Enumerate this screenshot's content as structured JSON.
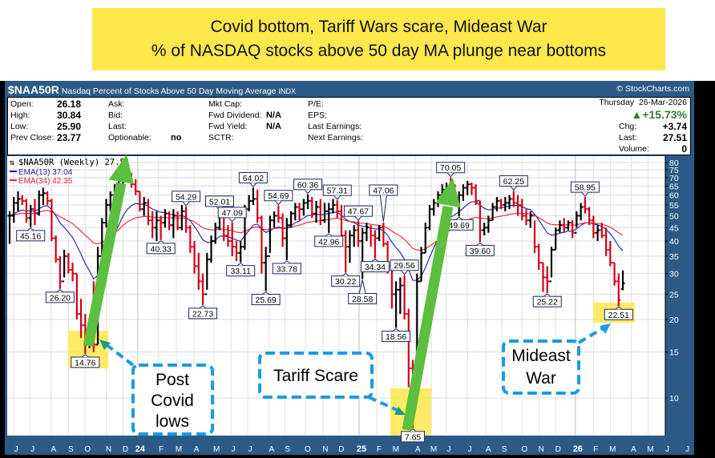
{
  "title_box": {
    "line1": "Covid bottom, Tariff Wars scare, Mideast War",
    "line2": "% of NASDAQ stocks above 50 day MA plunge near bottoms"
  },
  "header": {
    "symbol": "$NAA50R",
    "description": "Nasdaq Percent of Stocks Above 50 Day Moving Average",
    "exchange": "INDX",
    "copyright": "© StockCharts.com"
  },
  "info": {
    "open_label": "Open:",
    "open": "26.18",
    "high_label": "High:",
    "high": "30.84",
    "low_label": "Low:",
    "low": "25.90",
    "prev_close_label": "Prev Close:",
    "prev_close": "23.77",
    "ask_label": "Ask:",
    "bid_label": "Bid:",
    "last_label_mid": "Last:",
    "optionable_label": "Optionable:",
    "optionable": "no",
    "mkt_cap_label": "Mkt Cap:",
    "fwd_dividend_label": "Fwd Dividend:",
    "fwd_dividend": "N/A",
    "fwd_yield_label": "Fwd Yield:",
    "fwd_yield": "N/A",
    "sctr_label": "SCTR:",
    "pe_label": "P/E:",
    "eps_label": "EPS:",
    "last_earnings_label": "Last Earnings:",
    "next_earnings_label": "Next Earnings:",
    "date": "Thursday  26-Mar-2026",
    "pct_change": "+15.73%",
    "chg_label": "Chg:",
    "chg": "+3.74",
    "last_label": "Last:",
    "last": "27.51",
    "volume_label": "Volume:",
    "volume": "0"
  },
  "legend": {
    "price": "$NAA50R (Weekly) 27.51",
    "ema13": "EMA(13) 37.04",
    "ema34": "EMA(34) 42.35"
  },
  "colors": {
    "up": "#000000",
    "down": "#d0021b",
    "ema13": "#1a1a9c",
    "ema34": "#e0203a",
    "frame": "#2b5a86",
    "highlight": "#fde84c",
    "arrow_green": "#5cbf3f",
    "callout_blue": "#1a9be6",
    "pct_up": "#2e7d32"
  },
  "annotations": {
    "post_covid": [
      "Post",
      "Covid",
      "lows"
    ],
    "tariff": "Tariff Scare",
    "mideast": [
      "Mideast",
      "War"
    ]
  },
  "chart_data": {
    "type": "ohlc",
    "title": "$NAA50R Nasdaq Percent of Stocks Above 50 Day Moving Average (Weekly)",
    "yscale": "log",
    "ylim": [
      6.5,
      84
    ],
    "yticks": [
      "80",
      "75",
      "70",
      "65",
      "60",
      "55",
      "50",
      "45",
      "40",
      "35",
      "30",
      "25",
      "20",
      "15",
      "10"
    ],
    "bar_format": "[high, low, close] per week; open = prior close",
    "last_open": 26.18,
    "bars": [
      [
        52,
        39,
        50
      ],
      [
        59,
        47,
        56
      ],
      [
        62,
        52,
        58
      ],
      [
        60,
        55,
        57
      ],
      [
        58,
        47,
        49
      ],
      [
        55,
        45.16,
        53
      ],
      [
        58,
        46,
        51
      ],
      [
        62.5,
        50,
        60
      ],
      [
        64,
        55,
        61
      ],
      [
        62,
        55,
        57
      ],
      [
        58,
        40,
        41
      ],
      [
        42,
        33,
        34
      ],
      [
        35,
        26.2,
        28
      ],
      [
        37,
        29,
        35
      ],
      [
        36,
        30,
        31
      ],
      [
        33,
        28,
        30
      ],
      [
        30,
        20,
        21
      ],
      [
        24,
        17,
        19
      ],
      [
        21,
        14.76,
        16
      ],
      [
        19,
        15.5,
        18
      ],
      [
        28,
        15,
        16
      ],
      [
        38,
        16,
        35
      ],
      [
        49,
        34,
        47
      ],
      [
        58,
        45,
        55
      ],
      [
        62,
        52,
        60
      ],
      [
        66,
        58,
        64
      ],
      [
        71,
        62,
        68
      ],
      [
        76,
        66,
        73
      ],
      [
        75,
        67,
        70
      ],
      [
        73,
        64,
        66
      ],
      [
        69,
        60,
        62
      ],
      [
        62,
        52,
        53
      ],
      [
        59,
        50,
        56
      ],
      [
        58,
        46,
        48
      ],
      [
        52,
        41,
        45
      ],
      [
        52,
        40,
        48
      ],
      [
        50,
        40.33,
        47
      ],
      [
        53,
        45,
        51
      ],
      [
        52,
        44,
        46
      ],
      [
        53,
        41,
        50
      ],
      [
        52,
        44,
        45
      ],
      [
        55,
        44,
        52
      ],
      [
        54.29,
        43,
        45
      ],
      [
        46,
        36,
        38
      ],
      [
        40,
        30,
        32
      ],
      [
        36,
        26,
        28
      ],
      [
        30,
        22.73,
        25
      ],
      [
        36,
        26,
        34
      ],
      [
        42,
        33,
        40
      ],
      [
        47,
        39,
        45
      ],
      [
        52.01,
        44,
        50
      ],
      [
        50,
        40,
        42
      ],
      [
        46,
        38,
        40
      ],
      [
        47.09,
        35,
        38
      ],
      [
        40,
        33.5,
        36
      ],
      [
        40,
        33.11,
        38
      ],
      [
        55,
        37,
        53
      ],
      [
        60,
        52,
        57
      ],
      [
        64.02,
        55,
        58
      ],
      [
        63,
        47,
        49
      ],
      [
        50,
        30,
        33
      ],
      [
        38,
        25.69,
        35
      ],
      [
        50,
        36,
        48
      ],
      [
        52,
        45,
        50
      ],
      [
        54.69,
        47,
        49
      ],
      [
        51,
        38,
        41
      ],
      [
        49,
        33.78,
        46
      ],
      [
        52,
        45,
        51
      ],
      [
        56,
        48,
        54
      ],
      [
        56,
        48,
        53
      ],
      [
        58,
        50,
        56
      ],
      [
        60.36,
        53,
        57
      ],
      [
        59,
        49,
        51
      ],
      [
        57,
        47,
        54
      ],
      [
        58,
        46,
        48
      ],
      [
        56,
        47,
        52
      ],
      [
        56,
        42.96,
        53
      ],
      [
        58,
        51,
        55
      ],
      [
        57.31,
        49,
        52
      ],
      [
        55,
        40,
        42
      ],
      [
        44,
        30.22,
        38
      ],
      [
        44,
        33,
        42
      ],
      [
        46,
        38,
        44
      ],
      [
        47.67,
        38,
        40
      ],
      [
        45,
        28.58,
        43
      ],
      [
        47,
        40,
        45
      ],
      [
        46,
        38,
        42
      ],
      [
        44,
        34.34,
        41
      ],
      [
        46,
        40,
        45
      ],
      [
        47.06,
        38,
        39
      ],
      [
        40,
        30,
        32
      ],
      [
        33,
        22,
        25
      ],
      [
        28,
        18.56,
        26
      ],
      [
        29,
        21,
        27
      ],
      [
        29.56,
        20,
        21
      ],
      [
        22,
        11,
        13
      ],
      [
        14,
        7.65,
        12
      ],
      [
        30,
        15,
        28
      ],
      [
        38,
        28,
        36
      ],
      [
        47,
        36,
        45
      ],
      [
        55,
        44,
        53
      ],
      [
        58,
        50,
        56
      ],
      [
        62,
        54,
        60
      ],
      [
        66,
        58,
        63
      ],
      [
        67,
        59,
        65
      ],
      [
        70.05,
        60,
        63
      ],
      [
        66,
        55,
        57
      ],
      [
        62,
        49.69,
        60
      ],
      [
        66,
        57,
        64
      ],
      [
        68,
        60,
        66
      ],
      [
        67,
        60,
        64
      ],
      [
        66,
        55,
        57
      ],
      [
        57,
        39.6,
        44
      ],
      [
        47,
        42,
        45
      ],
      [
        50,
        43,
        48
      ],
      [
        56,
        48,
        54
      ],
      [
        59,
        52,
        57
      ],
      [
        58,
        53,
        55
      ],
      [
        59,
        52,
        56
      ],
      [
        60,
        53,
        58
      ],
      [
        62.25,
        54,
        56
      ],
      [
        60,
        50,
        55
      ],
      [
        58,
        48,
        50
      ],
      [
        53,
        46,
        48
      ],
      [
        52,
        45,
        50
      ],
      [
        48,
        36,
        38
      ],
      [
        39,
        31,
        33
      ],
      [
        33,
        25.5,
        29
      ],
      [
        32,
        25.22,
        28
      ],
      [
        38,
        29,
        37
      ],
      [
        45,
        37,
        44
      ],
      [
        48,
        43,
        46
      ],
      [
        49,
        43,
        45
      ],
      [
        48,
        44,
        47
      ],
      [
        48,
        41,
        43
      ],
      [
        52,
        45,
        50
      ],
      [
        56,
        48,
        54
      ],
      [
        58.95,
        51,
        53
      ],
      [
        54,
        46,
        48
      ],
      [
        50,
        41,
        43
      ],
      [
        46,
        40,
        44
      ],
      [
        47,
        41,
        42
      ],
      [
        45,
        35,
        37
      ],
      [
        40,
        32,
        33
      ],
      [
        33,
        27,
        28
      ],
      [
        30,
        22.51,
        23.77
      ],
      [
        30.84,
        25.9,
        27.51
      ]
    ],
    "labels": [
      {
        "week": 5,
        "text": "45.16",
        "side": "low"
      },
      {
        "week": 12,
        "text": "26.20",
        "side": "low"
      },
      {
        "week": 18,
        "text": "14.76",
        "side": "low"
      },
      {
        "week": 36,
        "text": "40.33",
        "side": "low"
      },
      {
        "week": 42,
        "text": "54.29",
        "side": "high"
      },
      {
        "week": 46,
        "text": "22.73",
        "side": "low"
      },
      {
        "week": 50,
        "text": "52.01",
        "side": "high"
      },
      {
        "week": 53,
        "text": "47.09",
        "side": "high"
      },
      {
        "week": 55,
        "text": "33.11",
        "side": "low"
      },
      {
        "week": 58,
        "text": "64.02",
        "side": "high"
      },
      {
        "week": 61,
        "text": "25.69",
        "side": "low"
      },
      {
        "week": 64,
        "text": "54.69",
        "side": "high"
      },
      {
        "week": 66,
        "text": "33.78",
        "side": "low"
      },
      {
        "week": 71,
        "text": "60.36",
        "side": "high"
      },
      {
        "week": 76,
        "text": "42.96",
        "side": "low"
      },
      {
        "week": 78,
        "text": "57.31",
        "side": "high"
      },
      {
        "week": 80,
        "text": "30.22",
        "side": "low"
      },
      {
        "week": 83,
        "text": "47.67",
        "side": "high"
      },
      {
        "week": 84,
        "text": "28.58",
        "side": "low"
      },
      {
        "week": 87,
        "text": "34.34",
        "side": "low"
      },
      {
        "week": 89,
        "text": "47.06",
        "side": "high"
      },
      {
        "week": 94,
        "text": "29.56",
        "side": "high"
      },
      {
        "week": 92,
        "text": "18.56",
        "side": "low"
      },
      {
        "week": 96,
        "text": "7.65",
        "side": "low"
      },
      {
        "week": 105,
        "text": "70.05",
        "side": "high"
      },
      {
        "week": 107,
        "text": "49.69",
        "side": "low"
      },
      {
        "week": 112,
        "text": "39.60",
        "side": "low"
      },
      {
        "week": 120,
        "text": "62.25",
        "side": "high"
      },
      {
        "week": 128,
        "text": "25.22",
        "side": "low"
      },
      {
        "week": 137,
        "text": "58.95",
        "side": "high"
      },
      {
        "week": 145,
        "text": "22.51",
        "side": "low"
      }
    ],
    "x_months": [
      {
        "week": 1,
        "label": "J"
      },
      {
        "week": 4.9,
        "label": "J"
      },
      {
        "week": 9.9,
        "label": "A"
      },
      {
        "week": 14,
        "label": "S"
      },
      {
        "week": 18,
        "label": "O"
      },
      {
        "week": 23,
        "label": "N"
      },
      {
        "week": 27,
        "label": "D"
      },
      {
        "week": 30.5,
        "label": "24"
      },
      {
        "week": 35.5,
        "label": "F"
      },
      {
        "week": 39.7,
        "label": "M"
      },
      {
        "week": 43.9,
        "label": "A"
      },
      {
        "week": 48.7,
        "label": "M"
      },
      {
        "week": 52.7,
        "label": "J"
      },
      {
        "week": 56.7,
        "label": "J"
      },
      {
        "week": 61.8,
        "label": "A"
      },
      {
        "week": 65.6,
        "label": "S"
      },
      {
        "week": 70.4,
        "label": "O"
      },
      {
        "week": 74.6,
        "label": "N"
      },
      {
        "week": 78.4,
        "label": "D"
      },
      {
        "week": 83.2,
        "label": "25"
      },
      {
        "week": 87.4,
        "label": "F"
      },
      {
        "week": 91.4,
        "label": "M"
      },
      {
        "week": 96.6,
        "label": "A"
      },
      {
        "week": 100.4,
        "label": "M"
      },
      {
        "week": 104,
        "label": "J"
      },
      {
        "week": 109,
        "label": "J"
      },
      {
        "week": 113.4,
        "label": "A"
      },
      {
        "week": 117.2,
        "label": "S"
      },
      {
        "week": 122,
        "label": "O"
      },
      {
        "week": 126,
        "label": "N"
      },
      {
        "week": 130,
        "label": "D"
      },
      {
        "week": 134.7,
        "label": "26"
      },
      {
        "week": 139,
        "label": "F"
      },
      {
        "week": 143,
        "label": "M"
      },
      {
        "week": 148,
        "label": "A"
      },
      {
        "week": 152,
        "label": "M"
      },
      {
        "week": 156,
        "label": "J"
      },
      {
        "week": 160.8,
        "label": "J"
      }
    ],
    "ema_periods": [
      13,
      34
    ]
  }
}
